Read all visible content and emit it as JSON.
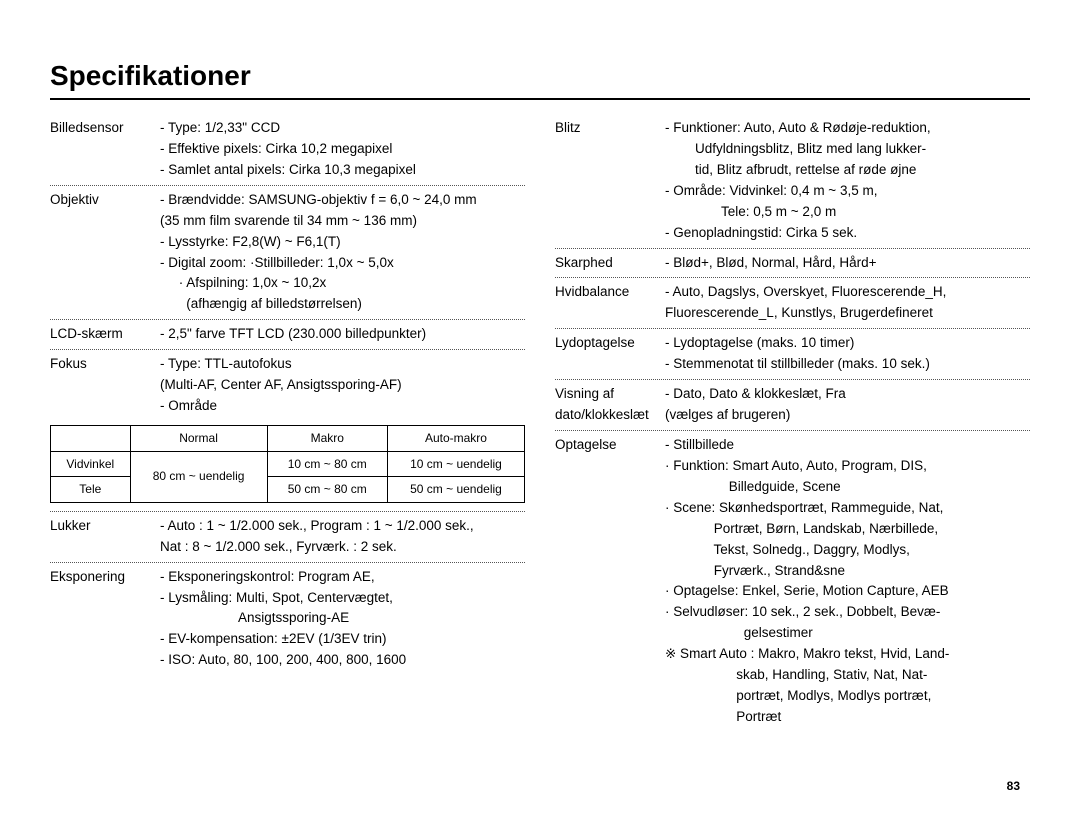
{
  "title": "Specifikationer",
  "page_number": "83",
  "left": {
    "billedsensor": {
      "label": "Billedsensor",
      "lines": [
        "- Type: 1/2,33\" CCD",
        "- Effektive pixels: Cirka 10,2 megapixel",
        "- Samlet antal pixels: Cirka 10,3 megapixel"
      ]
    },
    "objektiv": {
      "label": "Objektiv",
      "lines": [
        "- Brændvidde: SAMSUNG-objektiv f = 6,0 ~ 24,0 mm",
        "  (35 mm film svarende til 34 mm ~ 136 mm)",
        "- Lysstyrke: F2,8(W) ~ F6,1(T)",
        "- Digital zoom: ·Stillbilleder: 1,0x ~ 5,0x",
        "     · Afspilning: 1,0x ~ 10,2x",
        "       (afhængig af billedstørrelsen)"
      ]
    },
    "lcd": {
      "label": "LCD-skærm",
      "lines": [
        "- 2,5\" farve TFT LCD (230.000 billedpunkter)"
      ]
    },
    "fokus": {
      "label": "Fokus",
      "lines": [
        "- Type: TTL-autofokus",
        "  (Multi-AF, Center AF, Ansigtssporing-AF)",
        "- Område"
      ]
    },
    "focus_table": {
      "headers": [
        "",
        "Normal",
        "Makro",
        "Auto-makro"
      ],
      "row_labels": [
        "Vidvinkel",
        "Tele"
      ],
      "normal_merged": "80 cm ~ uendelig",
      "rows": [
        [
          "10 cm ~ 80 cm",
          "10 cm ~ uendelig"
        ],
        [
          "50 cm ~ 80 cm",
          "50 cm ~ uendelig"
        ]
      ]
    },
    "lukker": {
      "label": "Lukker",
      "lines": [
        "- Auto : 1 ~ 1/2.000 sek., Program : 1 ~ 1/2.000 sek.,",
        "  Nat : 8 ~ 1/2.000 sek., Fyrværk. : 2 sek."
      ]
    },
    "eksponering": {
      "label": "Eksponering",
      "lines": [
        "- Eksponeringskontrol: Program AE,",
        "- Lysmåling: Multi, Spot, Centervægtet,",
        "                     Ansigtssporing-AE",
        "- EV-kompensation: ±2EV (1/3EV trin)",
        "- ISO:  Auto, 80, 100, 200, 400, 800, 1600"
      ]
    }
  },
  "right": {
    "blitz": {
      "label": "Blitz",
      "lines": [
        "- Funktioner: Auto, Auto & Rødøje-reduktion,",
        "  Udfyldningsblitz, Blitz med lang lukker-",
        "  tid, Blitz afbrudt, rettelse af røde øjne",
        "- Område: Vidvinkel: 0,4 m ~ 3,5 m,",
        "               Tele: 0,5 m ~ 2,0 m",
        "- Genopladningstid: Cirka 5 sek."
      ]
    },
    "skarphed": {
      "label": "Skarphed",
      "lines": [
        "- Blød+, Blød, Normal, Hård, Hård+"
      ]
    },
    "hvidbalance": {
      "label": "Hvidbalance",
      "lines": [
        "- Auto, Dagslys, Overskyet, Fluorescerende_H,",
        "  Fluorescerende_L, Kunstlys, Brugerdefineret"
      ]
    },
    "lydoptagelse": {
      "label": "Lydoptagelse",
      "lines": [
        "- Lydoptagelse (maks. 10 timer)",
        "- Stemmenotat til stillbilleder (maks. 10 sek.)"
      ]
    },
    "visning": {
      "label": "Visning af dato/klokkeslæt",
      "lines": [
        "- Dato, Dato & klokkeslæt, Fra",
        "  (vælges af brugeren)"
      ]
    },
    "optagelse": {
      "label": "Optagelse",
      "lines": [
        "- Stillbillede",
        "  · Funktion: Smart Auto, Auto, Program, DIS,",
        "                 Billedguide, Scene",
        "  · Scene: Skønhedsportræt, Rammeguide, Nat,",
        "             Portræt, Børn, Landskab, Nærbillede,",
        "             Tekst, Solnedg., Daggry, Modlys,",
        "             Fyrværk., Strand&sne",
        "  · Optagelse: Enkel, Serie, Motion Capture, AEB",
        "  · Selvudløser: 10 sek., 2 sek., Dobbelt, Bevæ-",
        "                     gelsestimer",
        "※ Smart Auto : Makro, Makro tekst, Hvid, Land-",
        "                   skab, Handling, Stativ, Nat, Nat-",
        "                   portræt, Modlys, Modlys portræt,",
        "                   Portræt"
      ]
    }
  }
}
